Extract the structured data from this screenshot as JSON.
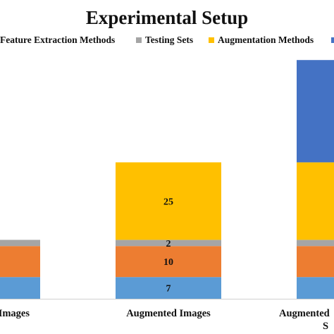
{
  "chart_data": {
    "type": "bar",
    "stacked": true,
    "title": "Experimental Setup",
    "xlabel": "",
    "ylabel": "",
    "ylim": [
      0,
      74
    ],
    "grid": false,
    "legend_position": "top",
    "categories": [
      "Images",
      "Augmented Images",
      "Augmented"
    ],
    "category_label_line2": [
      "",
      "",
      "S"
    ],
    "series": [
      {
        "name": "",
        "color": "#5b9bd5",
        "values": [
          7,
          7,
          7
        ]
      },
      {
        "name": "Feature Extraction Methods",
        "color": "#ed7d31",
        "values": [
          10,
          10,
          10
        ]
      },
      {
        "name": "Testing Sets",
        "color": "#a5a5a5",
        "values": [
          2,
          2,
          2
        ]
      },
      {
        "name": "Augmentation Methods",
        "color": "#ffc000",
        "values": [
          0,
          25,
          25
        ]
      },
      {
        "name": "",
        "color": "#4472c4",
        "values": [
          0,
          0,
          33
        ]
      }
    ],
    "data_labels": {
      "Augmented Images": [
        "7",
        "10",
        "2",
        "25",
        ""
      ]
    }
  }
}
